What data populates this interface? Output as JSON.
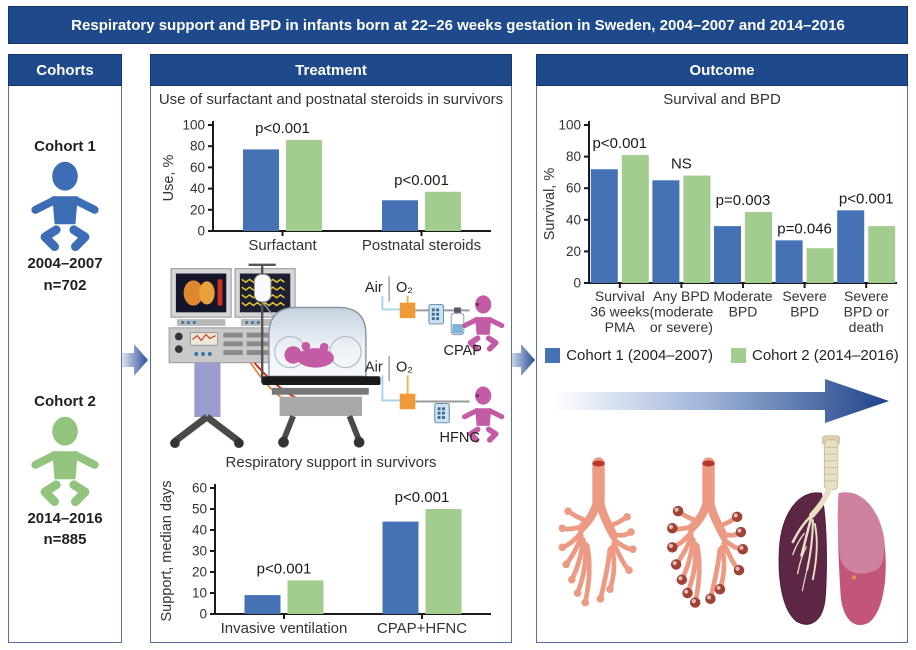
{
  "title": "Respiratory support and BPD in infants born at 22–26 weeks gestation in Sweden, 2004–2007 and 2014–2016",
  "colors": {
    "header_bg": "#1e4a8c",
    "cohort1_bar": "#4472b4",
    "cohort2_bar": "#a3cd8e",
    "cohort1_baby": "#3d6db5",
    "cohort2_baby": "#93c47d",
    "baby_pink": "#c45ba5",
    "blender_orange": "#f09a38",
    "arrow_dark": "#24488f"
  },
  "cohorts_panel": {
    "header": "Cohorts",
    "cohort1": {
      "label": "Cohort 1",
      "years": "2004–2007",
      "n": "n=702"
    },
    "cohort2": {
      "label": "Cohort 2",
      "years": "2014–2016",
      "n": "n=885"
    }
  },
  "treatment_panel": {
    "header": "Treatment",
    "illustration": {
      "air": "Air",
      "o2": "O₂",
      "cpap": "CPAP",
      "hfnc": "HFNC"
    }
  },
  "outcome_panel": {
    "header": "Outcome",
    "legend": [
      {
        "label": "Cohort 1 (2004–2007)",
        "color": "#4472b4"
      },
      {
        "label": "Cohort 2 (2014–2016)",
        "color": "#a3cd8e"
      }
    ]
  },
  "chart_data": [
    {
      "id": "surfactant-steroids",
      "type": "bar",
      "title": "Use of surfactant and postnatal steroids in survivors",
      "ylabel": "Use, %",
      "ylim": [
        0,
        100
      ],
      "yticks": [
        0,
        20,
        40,
        60,
        80,
        100
      ],
      "categories": [
        "Surfactant",
        "Postnatal steroids"
      ],
      "series": [
        {
          "name": "Cohort 1 (2004–2007)",
          "color": "#4472b4",
          "values": [
            77,
            29
          ]
        },
        {
          "name": "Cohort 2 (2014–2016)",
          "color": "#a3cd8e",
          "values": [
            86,
            37
          ]
        }
      ],
      "annotations": [
        "p<0.001",
        "p<0.001"
      ],
      "grid": false,
      "legend_position": "none"
    },
    {
      "id": "respiratory-support",
      "type": "bar",
      "title": "Respiratory support in survivors",
      "ylabel": "Support, median days",
      "ylim": [
        0,
        60
      ],
      "yticks": [
        0,
        10,
        20,
        30,
        40,
        50,
        60
      ],
      "categories": [
        "Invasive ventilation",
        "CPAP+HFNC"
      ],
      "series": [
        {
          "name": "Cohort 1 (2004–2007)",
          "color": "#4472b4",
          "values": [
            9,
            44
          ]
        },
        {
          "name": "Cohort 2 (2014–2016)",
          "color": "#a3cd8e",
          "values": [
            16,
            50
          ]
        }
      ],
      "annotations": [
        "p<0.001",
        "p<0.001"
      ],
      "grid": false,
      "legend_position": "none"
    },
    {
      "id": "survival-bpd",
      "type": "bar",
      "title": "Survival and BPD",
      "ylabel": "Survival, %",
      "ylim": [
        0,
        100
      ],
      "yticks": [
        0,
        20,
        40,
        60,
        80,
        100
      ],
      "categories": [
        [
          "Survival",
          "36 weeks",
          "PMA"
        ],
        [
          "Any BPD",
          "(moderate",
          "or severe)"
        ],
        [
          "Moderate",
          "BPD"
        ],
        [
          "Severe",
          "BPD"
        ],
        [
          "Severe",
          "BPD or",
          "death"
        ]
      ],
      "series": [
        {
          "name": "Cohort 1 (2004–2007)",
          "color": "#4472b4",
          "values": [
            72,
            65,
            36,
            27,
            46
          ]
        },
        {
          "name": "Cohort 2 (2014–2016)",
          "color": "#a3cd8e",
          "values": [
            81,
            68,
            45,
            22,
            36
          ]
        }
      ],
      "annotations": [
        "p<0.001",
        "NS",
        "p=0.003",
        "p=0.046",
        "p<0.001"
      ],
      "grid": false,
      "legend_position": "below"
    }
  ]
}
